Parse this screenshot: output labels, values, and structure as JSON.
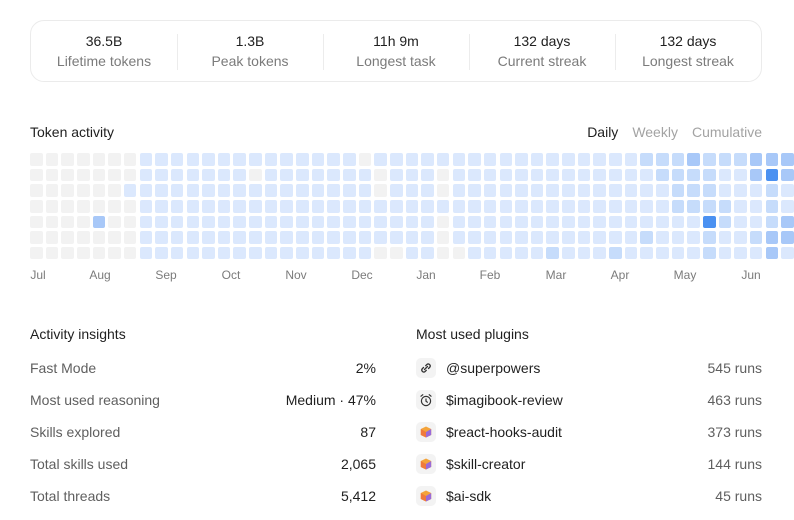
{
  "stats": [
    {
      "value": "36.5B",
      "label": "Lifetime tokens"
    },
    {
      "value": "1.3B",
      "label": "Peak tokens"
    },
    {
      "value": "11h 9m",
      "label": "Longest task"
    },
    {
      "value": "132 days",
      "label": "Current streak"
    },
    {
      "value": "132 days",
      "label": "Longest streak"
    }
  ],
  "token_activity": {
    "title": "Token activity",
    "toggle": [
      {
        "label": "Daily",
        "active": true
      },
      {
        "label": "Weekly",
        "active": false
      },
      {
        "label": "Cumulative",
        "active": false
      }
    ],
    "months": [
      "Jul",
      "Aug",
      "Sep",
      "Oct",
      "Nov",
      "Dec",
      "Jan",
      "Feb",
      "Mar",
      "Apr",
      "May",
      "Jun"
    ],
    "colors": [
      "#f2f2f2",
      "#dbe8fd",
      "#c6dcfb",
      "#a8c8f8",
      "#4b91f1"
    ],
    "levels": [
      "0000000111111111111110111111111111111112223222333",
      "0000000111111101111111011101111111111111222211343",
      "0000001111111111111111011101111111111111122211121",
      "0000000111111111111111111111111111111111122221121",
      "0000300111111111111111111101111111111111111421123",
      "0000000111111111111111111101111111111112111211233",
      "0000000111111111111111001100111112111211111211131"
    ]
  },
  "insights": {
    "title": "Activity insights",
    "rows": [
      {
        "label": "Fast Mode",
        "value": "2%"
      },
      {
        "label": "Most used reasoning",
        "value": "Medium · 47%"
      },
      {
        "label": "Skills explored",
        "value": "87"
      },
      {
        "label": "Total skills used",
        "value": "2,065"
      },
      {
        "label": "Total threads",
        "value": "5,412"
      }
    ]
  },
  "plugins": {
    "title": "Most used plugins",
    "rows": [
      {
        "name": "@superpowers",
        "runs": "545 runs",
        "icon": "link-icon"
      },
      {
        "name": "$imagibook-review",
        "runs": "463 runs",
        "icon": "alarm-icon"
      },
      {
        "name": "$react-hooks-audit",
        "runs": "373 runs",
        "icon": "cube-icon"
      },
      {
        "name": "$skill-creator",
        "runs": "144 runs",
        "icon": "cube-icon"
      },
      {
        "name": "$ai-sdk",
        "runs": "45 runs",
        "icon": "cube-icon"
      }
    ]
  }
}
